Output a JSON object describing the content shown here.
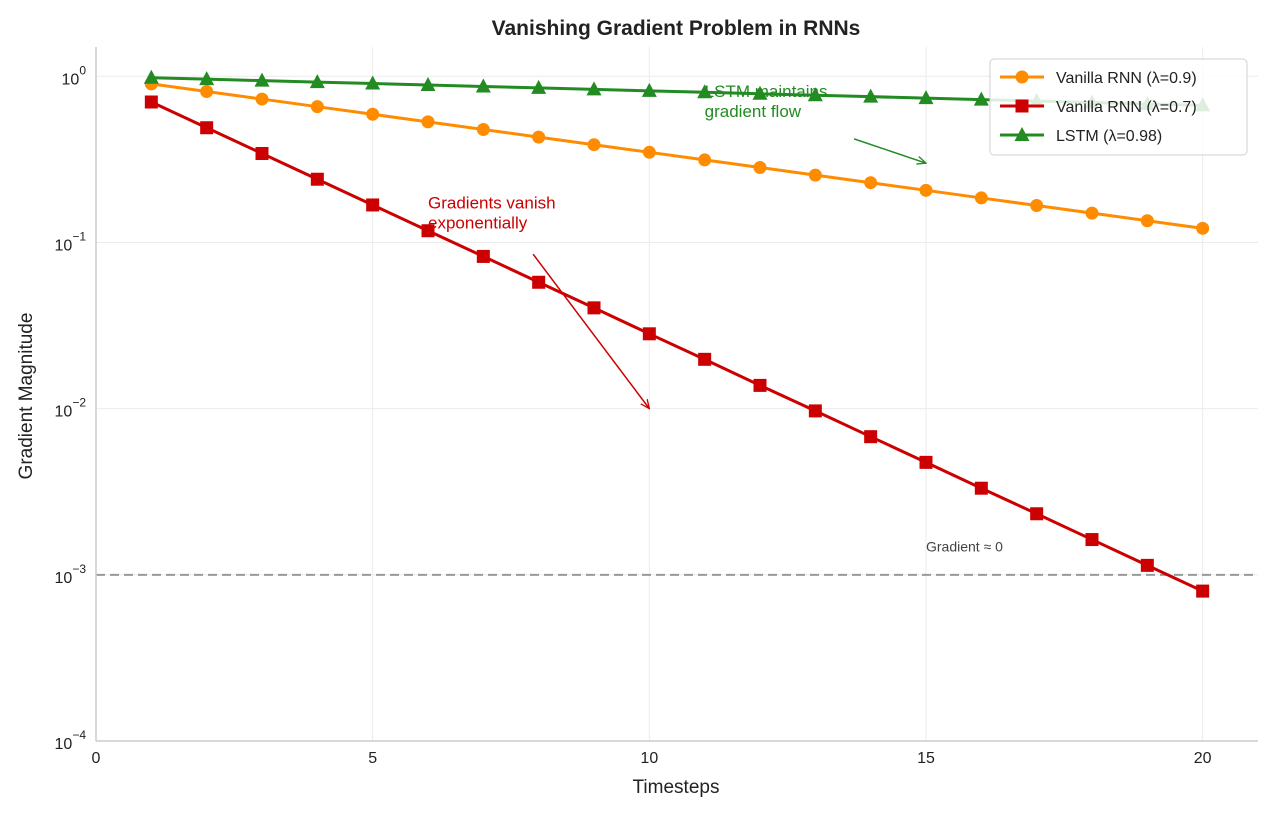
{
  "chart_data": {
    "type": "line",
    "title": "Vanishing Gradient Problem in RNNs",
    "xlabel": "Timesteps",
    "ylabel": "Gradient Magnitude",
    "xlim": [
      0,
      21
    ],
    "ylim": [
      0.0001,
      1.5
    ],
    "yscale": "log",
    "grid": true,
    "legend_placement": "top-right",
    "x_ticks": [
      "0",
      "5",
      "10",
      "15",
      "20"
    ],
    "x_tick_values": [
      0,
      5,
      10,
      15,
      20
    ],
    "y_tick_values": [
      1,
      0.1,
      0.01,
      0.001,
      0.0001
    ],
    "y_tick_labels": [
      {
        "base": "10",
        "exp": "0"
      },
      {
        "base": "10",
        "exp": "−1"
      },
      {
        "base": "10",
        "exp": "−2"
      },
      {
        "base": "10",
        "exp": "−3"
      },
      {
        "base": "10",
        "exp": "−4"
      }
    ],
    "x": [
      1,
      2,
      3,
      4,
      5,
      6,
      7,
      8,
      9,
      10,
      11,
      12,
      13,
      14,
      15,
      16,
      17,
      18,
      19,
      20
    ],
    "series": [
      {
        "name": "Vanilla RNN (λ=0.9)",
        "color": "#ff8c00",
        "marker": "circle",
        "values": [
          0.9,
          0.81,
          0.729,
          0.6561,
          0.5905,
          0.5314,
          0.4783,
          0.4305,
          0.3874,
          0.3487,
          0.3138,
          0.2824,
          0.2542,
          0.2288,
          0.2059,
          0.1853,
          0.1668,
          0.1501,
          0.1351,
          0.1216
        ]
      },
      {
        "name": "Vanilla RNN (λ=0.7)",
        "color": "#cc0000",
        "marker": "square",
        "values": [
          0.7,
          0.49,
          0.343,
          0.2401,
          0.1681,
          0.1176,
          0.0824,
          0.0576,
          0.0404,
          0.0282,
          0.0198,
          0.0138,
          0.00969,
          0.00678,
          0.00475,
          0.00332,
          0.00233,
          0.00163,
          0.00114,
          0.000798
        ]
      },
      {
        "name": "LSTM (λ=0.98)",
        "color": "#228b22",
        "marker": "triangle",
        "values": [
          0.98,
          0.9604,
          0.9412,
          0.9224,
          0.9039,
          0.8858,
          0.8681,
          0.8508,
          0.8337,
          0.8171,
          0.8007,
          0.7847,
          0.769,
          0.7536,
          0.7386,
          0.7238,
          0.7093,
          0.6951,
          0.6812,
          0.6676
        ]
      }
    ],
    "reference_line": {
      "y": 0.001,
      "label": "Gradient ≈ 0",
      "label_x": 15,
      "label_y": 0.0015,
      "color": "#999999"
    },
    "annotations": [
      {
        "text_lines": [
          "Gradients vanish",
          "exponentially"
        ],
        "text_x": 6,
        "text_y": 0.16,
        "arrow_from": [
          7.9,
          0.085
        ],
        "arrow_to": [
          10,
          0.01
        ],
        "color": "#cc0000"
      },
      {
        "text_lines": [
          "LSTM maintains",
          "gradient flow"
        ],
        "text_x": 11,
        "text_y": 0.75,
        "arrow_from": [
          13.7,
          0.42
        ],
        "arrow_to": [
          15,
          0.3
        ],
        "color": "#228b22"
      }
    ]
  }
}
